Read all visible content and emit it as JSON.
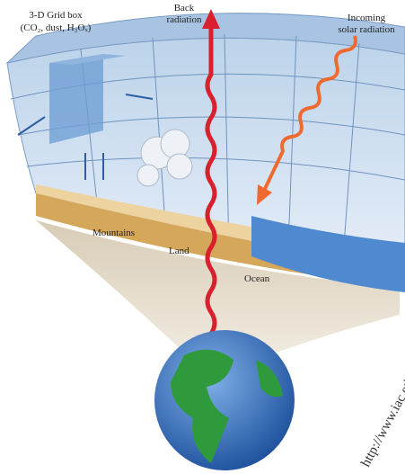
{
  "labels": {
    "grid_box": [
      "3-D Grid box",
      "(CO₂, dust, H₂Oₓ)"
    ],
    "back_radiation": [
      "Back",
      "radiation"
    ],
    "solar_radiation": [
      "Incoming",
      "solar radiation"
    ],
    "mountains": "Mountains",
    "land": "Land",
    "ocean": "Ocean"
  },
  "watermark": "http://www.iac.ethz"
}
